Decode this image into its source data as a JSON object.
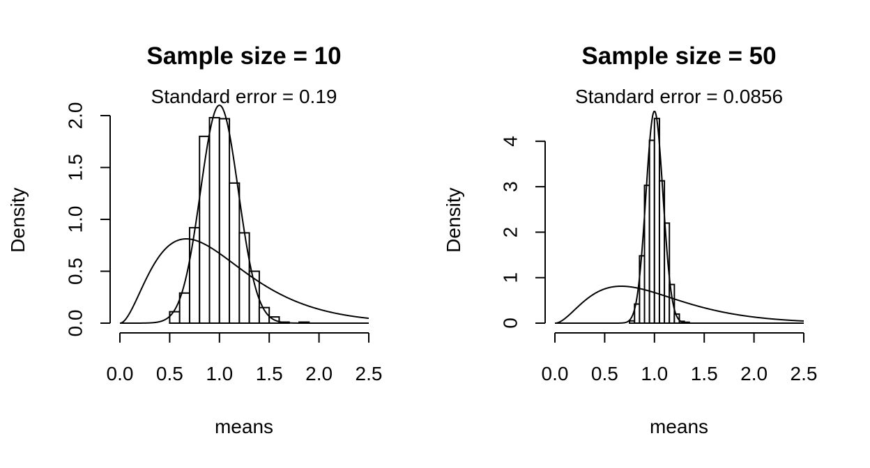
{
  "chart_data": [
    {
      "type": "bar",
      "title": "Sample size =  10",
      "subtitle": "Standard error =  0.19",
      "xlabel": "means",
      "ylabel": "Density",
      "xlim": [
        0,
        2.5
      ],
      "ylim": [
        0,
        2.0
      ],
      "x_ticks": [
        "0.0",
        "0.5",
        "1.0",
        "1.5",
        "2.0",
        "2.5"
      ],
      "y_ticks": [
        "0.0",
        "0.5",
        "1.0",
        "1.5",
        "2.0"
      ],
      "bin_width": 0.1,
      "bins": [
        {
          "x0": 0.5,
          "x1": 0.6,
          "density": 0.11
        },
        {
          "x0": 0.6,
          "x1": 0.7,
          "density": 0.29
        },
        {
          "x0": 0.7,
          "x1": 0.8,
          "density": 0.92
        },
        {
          "x0": 0.8,
          "x1": 0.9,
          "density": 1.8
        },
        {
          "x0": 0.9,
          "x1": 1.0,
          "density": 1.98
        },
        {
          "x0": 1.0,
          "x1": 1.1,
          "density": 1.97
        },
        {
          "x0": 1.1,
          "x1": 1.2,
          "density": 1.35
        },
        {
          "x0": 1.2,
          "x1": 1.3,
          "density": 0.87
        },
        {
          "x0": 1.3,
          "x1": 1.4,
          "density": 0.5
        },
        {
          "x0": 1.4,
          "x1": 1.5,
          "density": 0.15
        },
        {
          "x0": 1.5,
          "x1": 1.6,
          "density": 0.06
        },
        {
          "x0": 1.6,
          "x1": 1.7,
          "density": 0.01
        },
        {
          "x0": 1.8,
          "x1": 1.9,
          "density": 0.01
        }
      ],
      "curves": [
        {
          "kind": "gamma",
          "shape": 3,
          "rate": 3
        },
        {
          "kind": "normal",
          "mean": 1.0,
          "sd": 0.19
        }
      ]
    },
    {
      "type": "bar",
      "title": "Sample size =  50",
      "subtitle": "Standard error =  0.0856",
      "xlabel": "means",
      "ylabel": "Density",
      "xlim": [
        0,
        2.5
      ],
      "ylim": [
        0,
        4.6
      ],
      "x_ticks": [
        "0.0",
        "0.5",
        "1.0",
        "1.5",
        "2.0",
        "2.5"
      ],
      "y_ticks": [
        "0",
        "1",
        "2",
        "3",
        "4"
      ],
      "bin_width": 0.05,
      "bins": [
        {
          "x0": 0.75,
          "x1": 0.8,
          "density": 0.05
        },
        {
          "x0": 0.8,
          "x1": 0.85,
          "density": 0.42
        },
        {
          "x0": 0.85,
          "x1": 0.9,
          "density": 1.48
        },
        {
          "x0": 0.9,
          "x1": 0.95,
          "density": 3.03
        },
        {
          "x0": 0.95,
          "x1": 1.0,
          "density": 4.02
        },
        {
          "x0": 1.0,
          "x1": 1.05,
          "density": 4.5
        },
        {
          "x0": 1.05,
          "x1": 1.1,
          "density": 3.13
        },
        {
          "x0": 1.1,
          "x1": 1.15,
          "density": 2.2
        },
        {
          "x0": 1.15,
          "x1": 1.2,
          "density": 0.85
        },
        {
          "x0": 1.2,
          "x1": 1.25,
          "density": 0.2
        },
        {
          "x0": 1.25,
          "x1": 1.3,
          "density": 0.04
        },
        {
          "x0": 1.3,
          "x1": 1.35,
          "density": 0.02
        }
      ],
      "curves": [
        {
          "kind": "gamma",
          "shape": 3,
          "rate": 3
        },
        {
          "kind": "normal",
          "mean": 1.0,
          "sd": 0.0856
        }
      ]
    }
  ]
}
